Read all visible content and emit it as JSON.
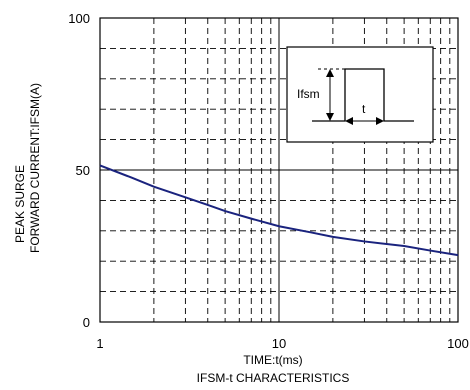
{
  "chart_data": {
    "type": "line",
    "title": "IFSM-t CHARACTERISTICS",
    "xlabel": "TIME:t(ms)",
    "ylabel_line1": "PEAK SURGE",
    "ylabel_line2": "FORWARD CURRENT:IFSM(A)",
    "x_scale": "log",
    "xlim": [
      1,
      100
    ],
    "ylim": [
      0,
      100
    ],
    "x_ticks": [
      {
        "value": 1,
        "label": "1"
      },
      {
        "value": 10,
        "label": "10"
      },
      {
        "value": 100,
        "label": "100"
      }
    ],
    "y_ticks": [
      {
        "value": 0,
        "label": "0"
      },
      {
        "value": 50,
        "label": "50"
      },
      {
        "value": 100,
        "label": "100"
      }
    ],
    "grid": true,
    "series": [
      {
        "x": [
          1,
          1.5,
          2,
          3,
          4,
          5,
          7,
          10,
          15,
          20,
          30,
          50,
          70,
          100
        ],
        "y": [
          51.5,
          47.5,
          44.5,
          41,
          38.5,
          36.5,
          34,
          31.5,
          29.5,
          28,
          26.5,
          25,
          23.5,
          22
        ]
      }
    ],
    "inset": {
      "label_ifsm": "Ifsm",
      "label_t": "t"
    }
  }
}
